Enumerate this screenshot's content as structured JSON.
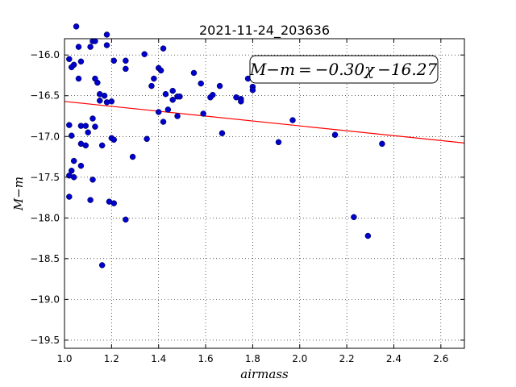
{
  "chart_data": {
    "type": "scatter",
    "title": "2021-11-24_203636",
    "xlabel": "airmass",
    "ylabel": "M−m",
    "xlim": [
      1.0,
      2.7
    ],
    "ylim": [
      -19.6,
      -15.8
    ],
    "x_ticks": [
      1.0,
      1.2,
      1.4,
      1.6,
      1.8,
      2.0,
      2.2,
      2.4,
      2.6
    ],
    "y_ticks": [
      -16.0,
      -16.5,
      -17.0,
      -17.5,
      -18.0,
      -18.5,
      -19.0,
      -19.5
    ],
    "x_tick_labels": [
      "1.0",
      "1.2",
      "1.4",
      "1.6",
      "1.8",
      "2.0",
      "2.2",
      "2.4",
      "2.6"
    ],
    "y_tick_labels": [
      "−16.0",
      "−16.5",
      "−17.0",
      "−17.5",
      "−18.0",
      "−18.5",
      "−19.0",
      "−19.5"
    ],
    "grid": true,
    "annotation": "M−m = −0.30χ −16.27",
    "fit_line": {
      "slope": -0.3,
      "intercept": -16.27,
      "color": "#ff0000"
    },
    "marker_color": "#0000cc",
    "points": [
      [
        1.05,
        -15.65
      ],
      [
        1.06,
        -15.9
      ],
      [
        1.11,
        -15.9
      ],
      [
        1.12,
        -15.83
      ],
      [
        1.13,
        -15.83
      ],
      [
        1.18,
        -15.75
      ],
      [
        1.18,
        -15.88
      ],
      [
        1.02,
        -16.05
      ],
      [
        1.03,
        -16.15
      ],
      [
        1.04,
        -16.12
      ],
      [
        1.07,
        -16.08
      ],
      [
        1.06,
        -16.29
      ],
      [
        1.13,
        -16.29
      ],
      [
        1.14,
        -16.34
      ],
      [
        1.15,
        -16.48
      ],
      [
        1.15,
        -16.56
      ],
      [
        1.17,
        -16.5
      ],
      [
        1.18,
        -16.58
      ],
      [
        1.2,
        -16.57
      ],
      [
        1.21,
        -16.07
      ],
      [
        1.26,
        -16.07
      ],
      [
        1.26,
        -16.17
      ],
      [
        1.34,
        -15.99
      ],
      [
        1.37,
        -16.38
      ],
      [
        1.38,
        -16.29
      ],
      [
        1.4,
        -16.16
      ],
      [
        1.41,
        -16.19
      ],
      [
        1.42,
        -15.92
      ],
      [
        1.43,
        -16.48
      ],
      [
        1.46,
        -16.44
      ],
      [
        1.46,
        -16.55
      ],
      [
        1.48,
        -16.51
      ],
      [
        1.49,
        -16.51
      ],
      [
        1.44,
        -16.67
      ],
      [
        1.48,
        -16.75
      ],
      [
        1.4,
        -16.7
      ],
      [
        1.42,
        -16.82
      ],
      [
        1.55,
        -16.22
      ],
      [
        1.58,
        -16.35
      ],
      [
        1.59,
        -16.72
      ],
      [
        1.62,
        -16.52
      ],
      [
        1.63,
        -16.49
      ],
      [
        1.66,
        -16.38
      ],
      [
        1.67,
        -16.96
      ],
      [
        1.73,
        -16.52
      ],
      [
        1.75,
        -16.54
      ],
      [
        1.75,
        -16.57
      ],
      [
        1.78,
        -16.29
      ],
      [
        1.8,
        -16.39
      ],
      [
        1.8,
        -16.43
      ],
      [
        1.02,
        -16.86
      ],
      [
        1.03,
        -16.99
      ],
      [
        1.07,
        -16.87
      ],
      [
        1.09,
        -16.87
      ],
      [
        1.1,
        -16.95
      ],
      [
        1.12,
        -16.78
      ],
      [
        1.13,
        -16.88
      ],
      [
        1.07,
        -17.09
      ],
      [
        1.09,
        -17.11
      ],
      [
        1.16,
        -17.11
      ],
      [
        1.2,
        -17.02
      ],
      [
        1.21,
        -17.04
      ],
      [
        1.35,
        -17.03
      ],
      [
        1.29,
        -17.25
      ],
      [
        1.91,
        -17.07
      ],
      [
        1.97,
        -16.8
      ],
      [
        2.15,
        -16.98
      ],
      [
        2.35,
        -17.09
      ],
      [
        1.04,
        -17.3
      ],
      [
        1.03,
        -17.42
      ],
      [
        1.02,
        -17.48
      ],
      [
        1.04,
        -17.5
      ],
      [
        1.07,
        -17.36
      ],
      [
        1.12,
        -17.53
      ],
      [
        1.02,
        -17.74
      ],
      [
        1.11,
        -17.78
      ],
      [
        1.19,
        -17.8
      ],
      [
        1.21,
        -17.82
      ],
      [
        1.26,
        -18.02
      ],
      [
        2.23,
        -17.99
      ],
      [
        2.29,
        -18.22
      ],
      [
        1.16,
        -18.58
      ]
    ]
  }
}
